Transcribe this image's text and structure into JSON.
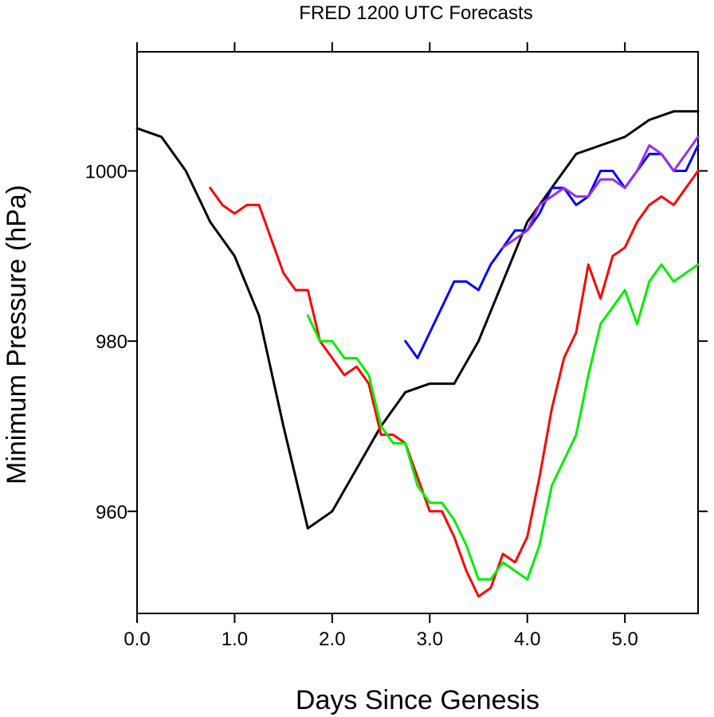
{
  "chart_data": {
    "type": "line",
    "title": "FRED 1200 UTC Forecasts",
    "xlabel": "Days Since Genesis",
    "ylabel": "Minimum Pressure (hPa)",
    "xlim": [
      0,
      5.75
    ],
    "ylim": [
      948,
      1014
    ],
    "xticks": [
      0,
      1,
      2,
      3,
      4,
      5
    ],
    "xtick_labels": [
      "0.0",
      "1.0",
      "2.0",
      "3.0",
      "4.0",
      "5.0"
    ],
    "yticks": [
      960,
      980,
      1000
    ],
    "ytick_labels": [
      "960",
      "980",
      "1000"
    ],
    "grid": false,
    "legend": "none",
    "series": [
      {
        "color": "#000000",
        "x": [
          0,
          0.25,
          0.5,
          0.75,
          1.0,
          1.25,
          1.5,
          1.75,
          2.0,
          2.25,
          2.5,
          2.75,
          3.0,
          3.25,
          3.5,
          3.75,
          4.0,
          4.25,
          4.5,
          4.75,
          5.0,
          5.25,
          5.5,
          5.75
        ],
        "y": [
          1005,
          1004,
          1000,
          994,
          990,
          983,
          970,
          958,
          960,
          965,
          970,
          974,
          975,
          975,
          980,
          987,
          994,
          998,
          1002,
          1003,
          1004,
          1006,
          1007,
          1007
        ]
      },
      {
        "color": "#ff0000",
        "x": [
          0.75,
          0.875,
          1.0,
          1.125,
          1.25,
          1.375,
          1.5,
          1.625,
          1.75,
          1.875,
          2.0,
          2.125,
          2.25,
          2.375,
          2.5,
          2.625,
          2.75,
          2.875,
          3.0,
          3.125,
          3.25,
          3.375,
          3.5,
          3.625,
          3.75,
          3.875,
          4.0,
          4.125,
          4.25,
          4.375,
          4.5,
          4.625,
          4.75,
          4.875,
          5.0,
          5.125,
          5.25,
          5.375,
          5.5,
          5.625,
          5.75
        ],
        "y": [
          998,
          996,
          995,
          996,
          996,
          992,
          988,
          986,
          986,
          980,
          978,
          976,
          977,
          975,
          969,
          969,
          968,
          964,
          960,
          960,
          957,
          953,
          950,
          951,
          955,
          954,
          957,
          964,
          972,
          978,
          981,
          989,
          985,
          990,
          991,
          994,
          996,
          997,
          996,
          998,
          1000
        ]
      },
      {
        "color": "#00ee00",
        "x": [
          1.75,
          1.875,
          2.0,
          2.125,
          2.25,
          2.375,
          2.5,
          2.625,
          2.75,
          2.875,
          3.0,
          3.125,
          3.25,
          3.375,
          3.5,
          3.625,
          3.75,
          3.875,
          4.0,
          4.125,
          4.25,
          4.375,
          4.5,
          4.625,
          4.75,
          4.875,
          5.0,
          5.125,
          5.25,
          5.375,
          5.5,
          5.625,
          5.75
        ],
        "y": [
          983,
          980,
          980,
          978,
          978,
          976,
          970,
          968,
          968,
          963,
          961,
          961,
          959,
          956,
          952,
          952,
          954,
          953,
          952,
          956,
          963,
          966,
          969,
          976,
          982,
          984,
          986,
          982,
          987,
          989,
          987,
          988,
          989
        ]
      },
      {
        "color": "#0000ff",
        "x": [
          2.75,
          2.875,
          3.0,
          3.125,
          3.25,
          3.375,
          3.5,
          3.625,
          3.75,
          3.875,
          4.0,
          4.125,
          4.25,
          4.375,
          4.5,
          4.625,
          4.75,
          4.875,
          5.0,
          5.125,
          5.25,
          5.375,
          5.5,
          5.625,
          5.75
        ],
        "y": [
          980,
          978,
          981,
          984,
          987,
          987,
          986,
          989,
          991,
          993,
          993,
          995,
          998,
          998,
          996,
          997,
          1000,
          1000,
          998,
          1000,
          1002,
          1002,
          1000,
          1000,
          1003
        ]
      },
      {
        "color": "#9a2eef",
        "x": [
          3.75,
          3.875,
          4.0,
          4.125,
          4.25,
          4.375,
          4.5,
          4.625,
          4.75,
          4.875,
          5.0,
          5.125,
          5.25,
          5.375,
          5.5,
          5.625,
          5.75
        ],
        "y": [
          991,
          992,
          993,
          996,
          997,
          998,
          997,
          997,
          999,
          999,
          998,
          1000,
          1003,
          1002,
          1000,
          1002,
          1004
        ]
      }
    ]
  }
}
